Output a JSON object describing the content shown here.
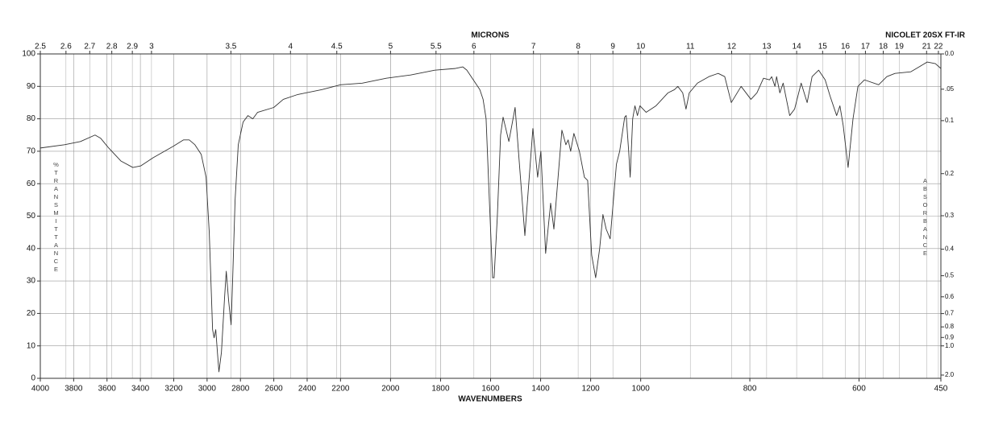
{
  "chart_data": {
    "type": "line",
    "top_axis_title": "MICRONS",
    "xlabel": "WAVENUMBERS",
    "ylabel": "%TRANSMITTANCE",
    "y2label": "ABSORBANCE",
    "instrument": "NICOLET 20SX FT-IR",
    "xlim": [
      4000,
      450
    ],
    "x_scale_breaks": [
      2200,
      1000
    ],
    "xticks": [
      4000,
      3800,
      3600,
      3400,
      3200,
      3000,
      2800,
      2600,
      2400,
      2200,
      2000,
      1800,
      1600,
      1400,
      1200,
      1000,
      800,
      600,
      450
    ],
    "micron_ticks": [
      2.5,
      2.6,
      2.7,
      2.8,
      2.9,
      3,
      3.5,
      4,
      4.5,
      5,
      5.5,
      6,
      7,
      8,
      9,
      10,
      11,
      12,
      13,
      14,
      15,
      16,
      17,
      18,
      19,
      21,
      22
    ],
    "ylim": [
      0,
      100
    ],
    "yticks": [
      0,
      10,
      20,
      30,
      40,
      50,
      60,
      70,
      80,
      90,
      100
    ],
    "y2ticks": [
      {
        "value": 0,
        "label": "0.0"
      },
      {
        "value": 0.05,
        "label": ".05"
      },
      0.1,
      0.2,
      0.3,
      0.4,
      0.5,
      0.6,
      0.7,
      0.8,
      0.9,
      {
        "value": 1,
        "label": "1.0"
      },
      {
        "value": 2,
        "label": "2.0"
      }
    ],
    "grid": true,
    "x": [
      4000,
      3855,
      3759,
      3672,
      3638,
      3590,
      3517,
      3445,
      3397,
      3324,
      3204,
      3141,
      3107,
      3073,
      3035,
      3006,
      2987,
      2967,
      2958,
      2948,
      2938,
      2929,
      2914,
      2895,
      2885,
      2871,
      2856,
      2847,
      2832,
      2813,
      2784,
      2755,
      2726,
      2697,
      2600,
      2543,
      2456,
      2311,
      2200,
      2113,
      2017,
      1920,
      1823,
      1743,
      1711,
      1695,
      1669,
      1643,
      1630,
      1618,
      1605,
      1592,
      1586,
      1573,
      1560,
      1550,
      1527,
      1502,
      1463,
      1431,
      1412,
      1399,
      1380,
      1360,
      1347,
      1315,
      1299,
      1290,
      1280,
      1267,
      1245,
      1225,
      1212,
      1196,
      1180,
      1164,
      1151,
      1138,
      1122,
      1097,
      1084,
      1064,
      1058,
      1048,
      1042,
      1032,
      1023,
      1013,
      1003,
      990,
      972,
      950,
      938,
      932,
      923,
      917,
      911,
      896,
      875,
      858,
      846,
      834,
      816,
      798,
      787,
      775,
      764,
      760,
      754,
      751,
      745,
      739,
      727,
      718,
      706,
      695,
      686,
      674,
      662,
      653,
      641,
      635,
      629,
      620,
      611,
      602,
      590,
      564,
      549,
      534,
      505,
      490,
      475,
      460,
      450
    ],
    "series": [
      {
        "color": "#333333",
        "values": [
          71,
          72,
          73,
          75,
          74,
          71,
          67,
          65,
          65.5,
          68,
          71.5,
          73.5,
          73.5,
          72,
          69,
          62,
          45,
          15,
          12.5,
          15,
          8,
          2,
          8,
          25,
          33,
          24,
          16.5,
          30,
          55,
          72,
          79,
          81,
          80,
          82,
          83.5,
          86,
          87.5,
          89,
          90.5,
          91,
          92.5,
          93.5,
          95,
          95.5,
          96,
          95,
          92,
          89,
          86,
          80,
          55,
          31,
          31,
          50,
          75,
          80.5,
          73,
          83.5,
          44,
          77,
          62,
          70,
          38.5,
          54,
          46,
          76.5,
          72,
          73.5,
          70,
          75.5,
          70,
          62,
          61,
          38,
          31,
          40,
          50.5,
          46,
          43,
          66,
          70,
          80.5,
          81,
          70,
          62,
          80,
          84,
          81,
          84,
          82,
          84,
          88,
          89,
          90,
          88,
          83,
          88,
          91,
          93,
          94,
          93,
          85,
          90,
          86,
          88,
          92.5,
          92,
          93,
          90,
          93,
          88,
          91,
          81,
          83,
          91,
          85,
          93,
          95,
          92,
          87,
          81,
          84,
          78,
          65,
          80,
          90,
          92,
          90.5,
          93,
          94,
          94.5,
          96,
          97.5,
          97,
          95.5
        ]
      }
    ]
  }
}
